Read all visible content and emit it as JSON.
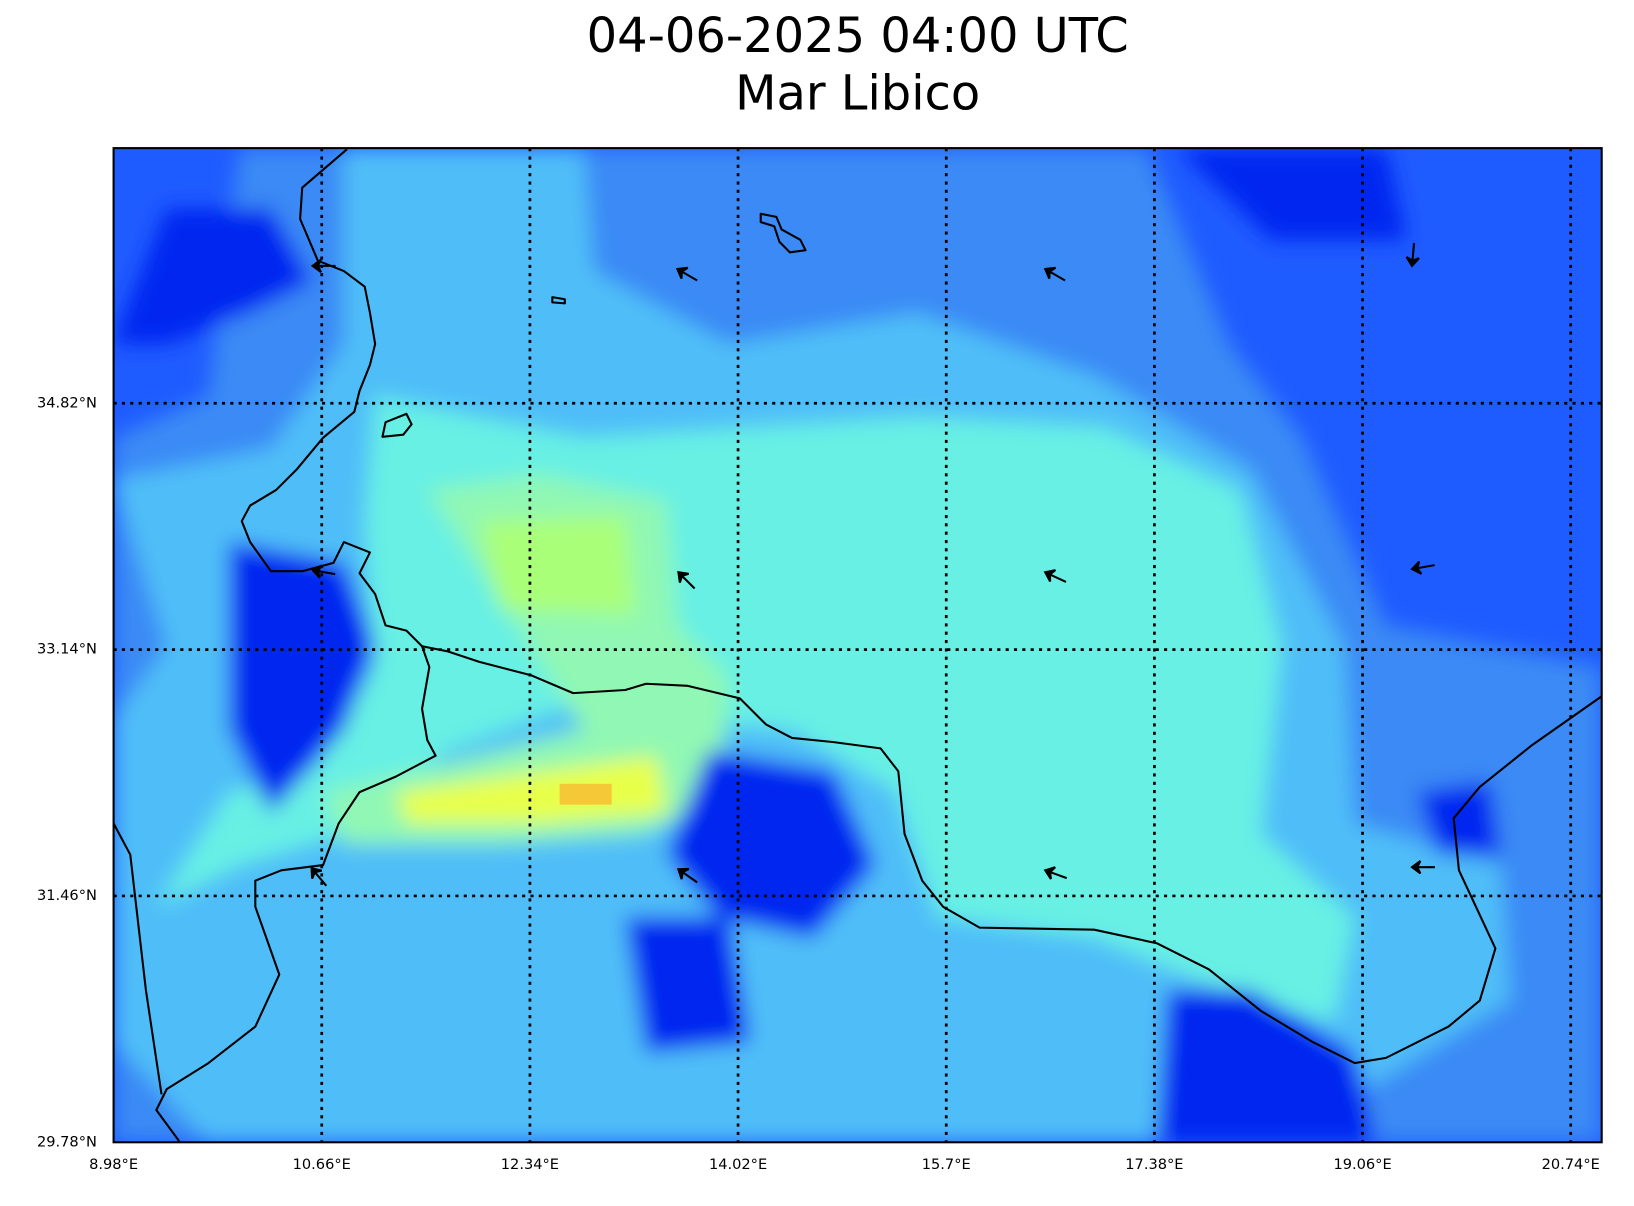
{
  "map": {
    "title": "04-06-2025 04:00 UTC",
    "subtitle": "Mar Libico",
    "lonlim": [
      8.98,
      20.99
    ],
    "latlim": [
      29.78,
      36.56
    ],
    "lon_ticks": [
      {
        "value": 8.98,
        "label": "8.98°E"
      },
      {
        "value": 10.66,
        "label": "10.66°E"
      },
      {
        "value": 12.34,
        "label": "12.34°E"
      },
      {
        "value": 14.02,
        "label": "14.02°E"
      },
      {
        "value": 15.7,
        "label": "15.7°E"
      },
      {
        "value": 17.38,
        "label": "17.38°E"
      },
      {
        "value": 19.06,
        "label": "19.06°E"
      },
      {
        "value": 20.74,
        "label": "20.74°E"
      }
    ],
    "lat_ticks": [
      {
        "value": 29.78,
        "label": "29.78°N"
      },
      {
        "value": 31.46,
        "label": "31.46°N"
      },
      {
        "value": 33.14,
        "label": "33.14°N"
      },
      {
        "value": 34.82,
        "label": "34.82°N"
      }
    ]
  }
}
